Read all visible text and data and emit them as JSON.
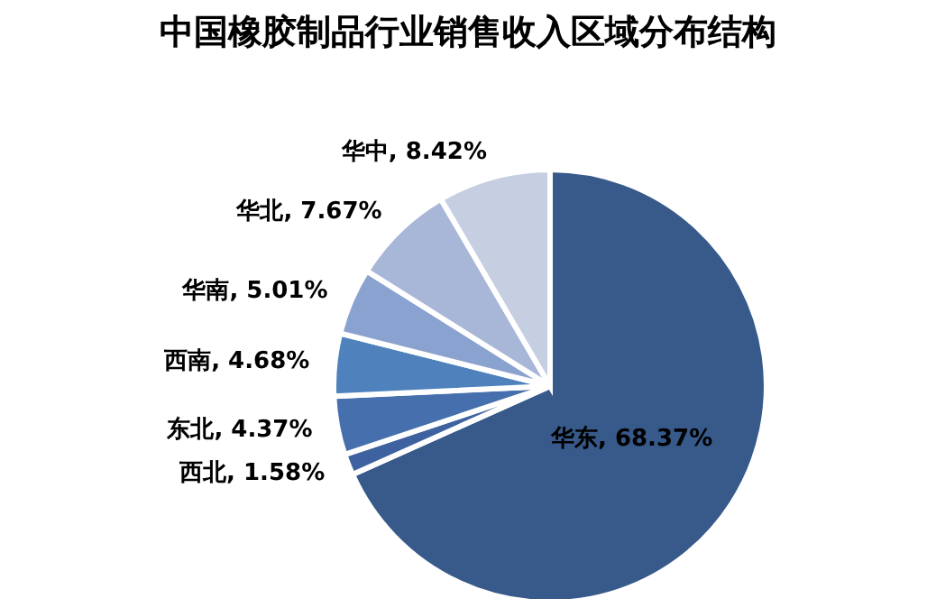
{
  "chart_data": {
    "type": "pie",
    "title": "中国橡胶制品行业销售收入区域分布结构",
    "categories": [
      "华东",
      "西北",
      "东北",
      "西南",
      "华南",
      "华北",
      "华中"
    ],
    "values": [
      68.37,
      1.58,
      4.37,
      4.68,
      5.01,
      7.67,
      8.42
    ],
    "value_labels": [
      "68.37%",
      "1.58%",
      "4.37%",
      "4.68%",
      "5.01%",
      "7.67%",
      "8.42%"
    ],
    "colors": [
      "#375a8b",
      "#3e62a0",
      "#4670ad",
      "#4f81bd",
      "#8aa2cf",
      "#a8b7d7",
      "#c6cfe2"
    ],
    "legend": false
  }
}
